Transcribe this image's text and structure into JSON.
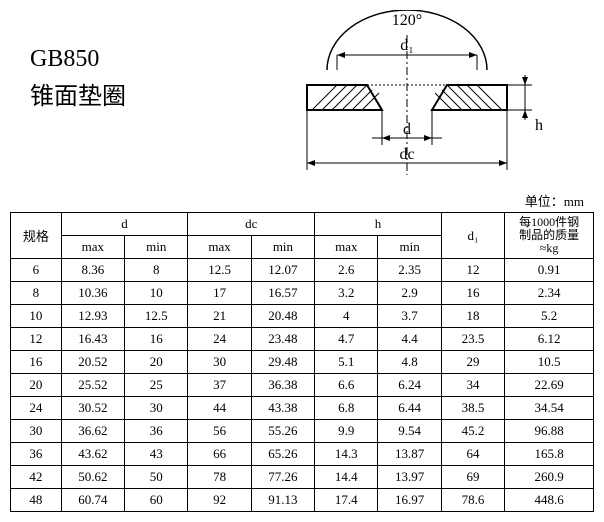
{
  "title": {
    "line1": "GB850",
    "line2": "锥面垫圈"
  },
  "diagram": {
    "angle": "120°",
    "d1": "d₁",
    "d": "d",
    "dc": "dc",
    "h": "h"
  },
  "unit_label": "单位：mm",
  "headers": {
    "spec": "规格",
    "d": "d",
    "dc": "dc",
    "h": "h",
    "d1": "d₁",
    "mass_l1": "每1000件钢",
    "mass_l2": "制品的质量",
    "mass_l3": "≈kg",
    "max": "max",
    "min": "min"
  },
  "rows": [
    {
      "spec": "6",
      "d_max": "8.36",
      "d_min": "8",
      "dc_max": "12.5",
      "dc_min": "12.07",
      "h_max": "2.6",
      "h_min": "2.35",
      "d1": "12",
      "mass": "0.91"
    },
    {
      "spec": "8",
      "d_max": "10.36",
      "d_min": "10",
      "dc_max": "17",
      "dc_min": "16.57",
      "h_max": "3.2",
      "h_min": "2.9",
      "d1": "16",
      "mass": "2.34"
    },
    {
      "spec": "10",
      "d_max": "12.93",
      "d_min": "12.5",
      "dc_max": "21",
      "dc_min": "20.48",
      "h_max": "4",
      "h_min": "3.7",
      "d1": "18",
      "mass": "5.2"
    },
    {
      "spec": "12",
      "d_max": "16.43",
      "d_min": "16",
      "dc_max": "24",
      "dc_min": "23.48",
      "h_max": "4.7",
      "h_min": "4.4",
      "d1": "23.5",
      "mass": "6.12"
    },
    {
      "spec": "16",
      "d_max": "20.52",
      "d_min": "20",
      "dc_max": "30",
      "dc_min": "29.48",
      "h_max": "5.1",
      "h_min": "4.8",
      "d1": "29",
      "mass": "10.5"
    },
    {
      "spec": "20",
      "d_max": "25.52",
      "d_min": "25",
      "dc_max": "37",
      "dc_min": "36.38",
      "h_max": "6.6",
      "h_min": "6.24",
      "d1": "34",
      "mass": "22.69"
    },
    {
      "spec": "24",
      "d_max": "30.52",
      "d_min": "30",
      "dc_max": "44",
      "dc_min": "43.38",
      "h_max": "6.8",
      "h_min": "6.44",
      "d1": "38.5",
      "mass": "34.54"
    },
    {
      "spec": "30",
      "d_max": "36.62",
      "d_min": "36",
      "dc_max": "56",
      "dc_min": "55.26",
      "h_max": "9.9",
      "h_min": "9.54",
      "d1": "45.2",
      "mass": "96.88"
    },
    {
      "spec": "36",
      "d_max": "43.62",
      "d_min": "43",
      "dc_max": "66",
      "dc_min": "65.26",
      "h_max": "14.3",
      "h_min": "13.87",
      "d1": "64",
      "mass": "165.8"
    },
    {
      "spec": "42",
      "d_max": "50.62",
      "d_min": "50",
      "dc_max": "78",
      "dc_min": "77.26",
      "h_max": "14.4",
      "h_min": "13.97",
      "d1": "69",
      "mass": "260.9"
    },
    {
      "spec": "48",
      "d_max": "60.74",
      "d_min": "60",
      "dc_max": "92",
      "dc_min": "91.13",
      "h_max": "17.4",
      "h_min": "16.97",
      "d1": "78.6",
      "mass": "448.6"
    }
  ],
  "colors": {
    "stroke": "#000000",
    "hatch": "#000000",
    "bg": "#ffffff"
  }
}
